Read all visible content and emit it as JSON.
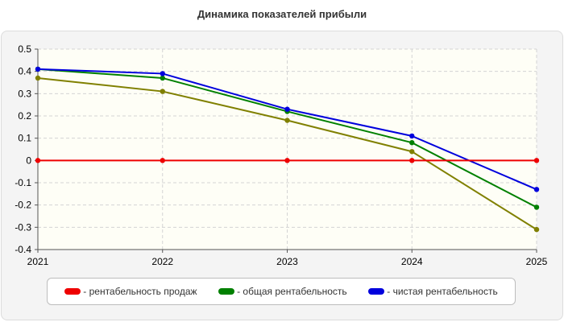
{
  "chart_data": {
    "type": "line",
    "title": "Динамика показателей прибыли",
    "xlabel": "",
    "ylabel": "",
    "x": [
      "2021",
      "2022",
      "2023",
      "2024",
      "2025"
    ],
    "ylim": [
      -0.4,
      0.5
    ],
    "yticks": [
      "0.5",
      "0.4",
      "0.3",
      "0.2",
      "0.1",
      "0",
      "-0.1",
      "-0.2",
      "-0.3",
      "-0.4"
    ],
    "grid": true,
    "legend_position": "bottom",
    "series": [
      {
        "name": "- рентабельность продаж",
        "color": "#ee0000",
        "values": [
          0,
          0,
          0,
          0,
          0
        ]
      },
      {
        "name": "- общая рентабельность",
        "color": "#008000",
        "values": [
          0.41,
          0.37,
          0.22,
          0.08,
          -0.21
        ]
      },
      {
        "name": "- чистая рентабельность",
        "color": "#0000dd",
        "values": [
          0.41,
          0.39,
          0.23,
          0.11,
          -0.13
        ]
      },
      {
        "name": "",
        "color": "#808000",
        "values": [
          0.37,
          0.31,
          0.18,
          0.04,
          -0.31
        ]
      }
    ]
  }
}
